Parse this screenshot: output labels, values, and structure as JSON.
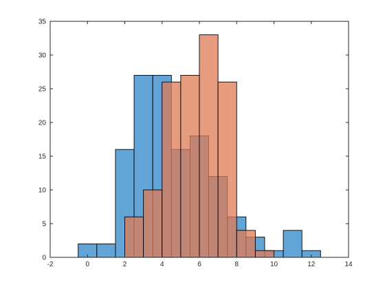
{
  "chart_data": {
    "type": "bar",
    "subtype": "overlapping-histogram",
    "title": "",
    "xlabel": "",
    "ylabel": "",
    "xlim": [
      -2,
      14
    ],
    "ylim": [
      0,
      35
    ],
    "xticks": [
      -2,
      0,
      2,
      4,
      6,
      8,
      10,
      12,
      14
    ],
    "yticks": [
      0,
      5,
      10,
      15,
      20,
      25,
      30,
      35
    ],
    "grid": false,
    "legend": "none",
    "series": [
      {
        "color": "#5a9fd4",
        "opacity": 0.95,
        "bins": [
          {
            "x0": -0.5,
            "x1": 0.5,
            "count": 2
          },
          {
            "x0": 0.5,
            "x1": 1.5,
            "count": 2
          },
          {
            "x0": 1.5,
            "x1": 2.5,
            "count": 16
          },
          {
            "x0": 2.5,
            "x1": 3.5,
            "count": 27
          },
          {
            "x0": 3.5,
            "x1": 4.5,
            "count": 27
          },
          {
            "x0": 4.5,
            "x1": 5.5,
            "count": 16
          },
          {
            "x0": 5.5,
            "x1": 6.5,
            "count": 18
          },
          {
            "x0": 6.5,
            "x1": 7.5,
            "count": 12
          },
          {
            "x0": 7.5,
            "x1": 8.5,
            "count": 6
          },
          {
            "x0": 8.5,
            "x1": 9.5,
            "count": 3
          },
          {
            "x0": 9.5,
            "x1": 10.5,
            "count": 1
          },
          {
            "x0": 10.5,
            "x1": 11.5,
            "count": 4
          },
          {
            "x0": 11.5,
            "x1": 12.5,
            "count": 1
          }
        ]
      },
      {
        "color": "#e07b54",
        "opacity": 0.75,
        "bins": [
          {
            "x0": 2.0,
            "x1": 3.0,
            "count": 6
          },
          {
            "x0": 3.0,
            "x1": 4.0,
            "count": 10
          },
          {
            "x0": 4.0,
            "x1": 5.0,
            "count": 26
          },
          {
            "x0": 5.0,
            "x1": 6.0,
            "count": 27
          },
          {
            "x0": 6.0,
            "x1": 7.0,
            "count": 33
          },
          {
            "x0": 7.0,
            "x1": 8.0,
            "count": 26
          },
          {
            "x0": 8.0,
            "x1": 9.0,
            "count": 4
          },
          {
            "x0": 9.0,
            "x1": 10.0,
            "count": 1
          }
        ]
      }
    ]
  }
}
